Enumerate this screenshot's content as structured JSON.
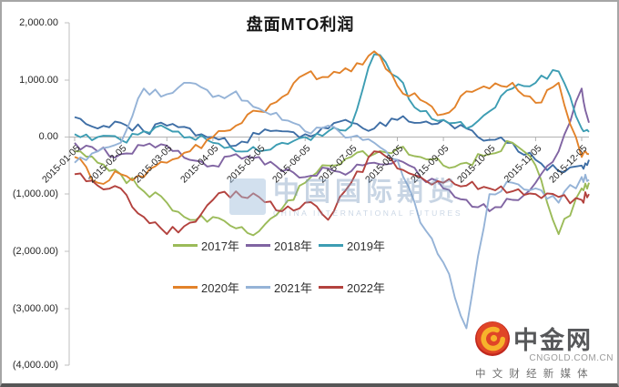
{
  "title": "盘面MTO利润",
  "watermark": {
    "cn": "中国国际期货",
    "en": "CHINA INTERNATIONAL FUTURES"
  },
  "logo": {
    "name": "中金网",
    "domain": "CNGOLD.COM.CN",
    "tagline": "中 文 财 经 新 媒 体"
  },
  "chart_data": {
    "type": "line",
    "title": "盘面MTO利润",
    "xlabel": "",
    "ylabel": "",
    "ylim": [
      -4000,
      2000
    ],
    "grid": false,
    "legend_position": "center-bottom, two rows",
    "y_ticks": [
      "2,000.00",
      "1,000.00",
      "0.00",
      "(1,000.00)",
      "(2,000.00)",
      "(3,000.00)",
      "(4,000.00)"
    ],
    "y_tick_values": [
      2000,
      1000,
      0,
      -1000,
      -2000,
      -3000,
      -4000
    ],
    "x_labels": [
      "2015-01-05",
      "2015-02-05",
      "2015-03-05",
      "2015-04-05",
      "2015-05-05",
      "2015-06-05",
      "2015-07-05",
      "2015-08-05",
      "2015-09-05",
      "2015-10-05",
      "2015-11-05",
      "2015-12-05"
    ],
    "x_sampling_note": "values sampled twice per month, Jan-05 through mid-December",
    "extra_series": {
      "name": "",
      "color": "#3E6EA5",
      "values": [
        350,
        150,
        250,
        100,
        200,
        150,
        0,
        -150,
        50,
        100,
        50,
        150,
        250,
        150,
        300,
        250,
        300,
        150,
        -50,
        -100,
        -400,
        -600,
        -500,
        -400
      ]
    },
    "series": [
      {
        "name": "2017年",
        "color": "#9BBB59",
        "values": [
          -250,
          -450,
          -650,
          -950,
          -1150,
          -1450,
          -1400,
          -1600,
          -1650,
          -1250,
          -800,
          -500,
          -350,
          -300,
          -200,
          -350,
          -500,
          -450,
          -300,
          -100,
          -500,
          -1700,
          -900,
          -800
        ]
      },
      {
        "name": "2018年",
        "color": "#8064A2",
        "values": [
          -100,
          -250,
          -300,
          -150,
          -150,
          -400,
          -500,
          -300,
          -350,
          -600,
          -700,
          -550,
          -600,
          -450,
          -400,
          -700,
          -900,
          -1100,
          -1300,
          -1100,
          -800,
          -250,
          850,
          250
        ]
      },
      {
        "name": "2019年",
        "color": "#3D9DB3",
        "values": [
          50,
          0,
          -50,
          100,
          150,
          0,
          -100,
          -250,
          -250,
          -100,
          0,
          100,
          200,
          1450,
          1050,
          450,
          300,
          150,
          450,
          850,
          950,
          1150,
          150,
          90
        ]
      },
      {
        "name": "2020年",
        "color": "#E2822A",
        "values": [
          -350,
          -800,
          -650,
          -700,
          -450,
          -250,
          0,
          200,
          450,
          700,
          1100,
          1050,
          1150,
          1500,
          900,
          650,
          400,
          800,
          850,
          950,
          600,
          950,
          -350,
          -300
        ]
      },
      {
        "name": "2021年",
        "color": "#95B3D7",
        "values": [
          -450,
          -250,
          -100,
          850,
          750,
          950,
          700,
          800,
          500,
          300,
          100,
          200,
          0,
          -100,
          -400,
          -1500,
          -2200,
          -3350,
          -1000,
          -800,
          -900,
          -1150,
          -700,
          -750
        ]
      },
      {
        "name": "2022年",
        "color": "#B3423E",
        "values": [
          -650,
          -850,
          -900,
          -1400,
          -1700,
          -1500,
          -1100,
          -950,
          -1050,
          -1300,
          -1150,
          -1450,
          -800,
          -250,
          -550,
          -700,
          -800,
          -850,
          -900,
          -950,
          -1000,
          -1050,
          -1100,
          -1000
        ]
      }
    ]
  }
}
